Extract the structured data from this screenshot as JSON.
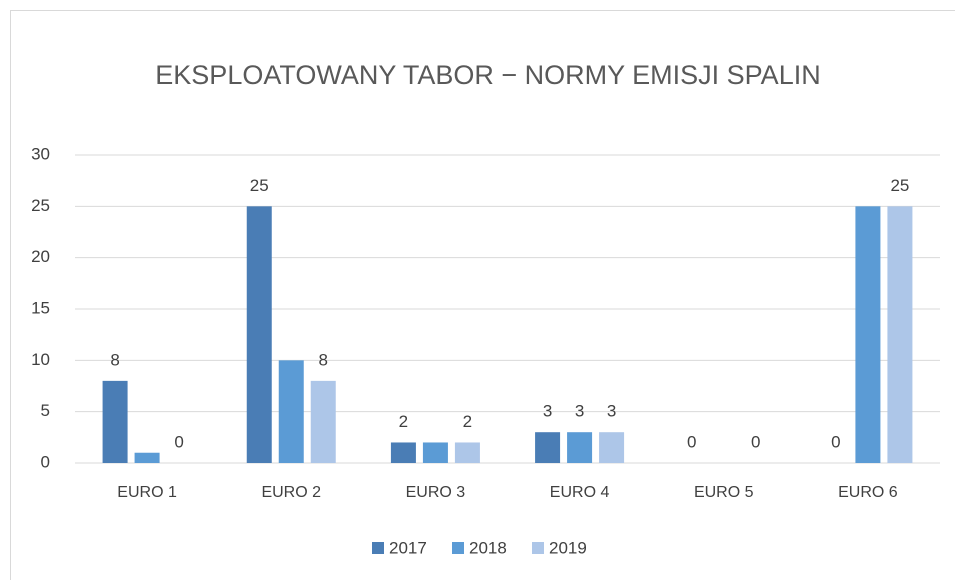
{
  "chart_data": {
    "type": "bar",
    "title": "EKSPLOATOWANY TABOR − NORMY EMISJI SPALIN",
    "categories": [
      "EURO 1",
      "EURO 2",
      "EURO 3",
      "EURO 4",
      "EURO 5",
      "EURO 6"
    ],
    "series": [
      {
        "name": "2017",
        "color": "#4a7db5",
        "values": [
          8,
          25,
          2,
          3,
          0,
          0
        ],
        "value_labels": [
          "8",
          "25",
          "2",
          "3",
          "0",
          "0"
        ]
      },
      {
        "name": "2018",
        "color": "#5b9bd5",
        "values": [
          1,
          10,
          2,
          3,
          0,
          25
        ],
        "value_labels": [
          null,
          null,
          null,
          "3",
          null,
          null
        ]
      },
      {
        "name": "2019",
        "color": "#adc6e8",
        "values": [
          0,
          8,
          2,
          3,
          0,
          25
        ],
        "value_labels": [
          "0",
          "8",
          "2",
          "3",
          "0",
          "25"
        ]
      }
    ],
    "ylim": [
      0,
      30
    ],
    "yticks": [
      0,
      5,
      10,
      15,
      20,
      25,
      30
    ],
    "grid": true,
    "legend": "bottom"
  }
}
